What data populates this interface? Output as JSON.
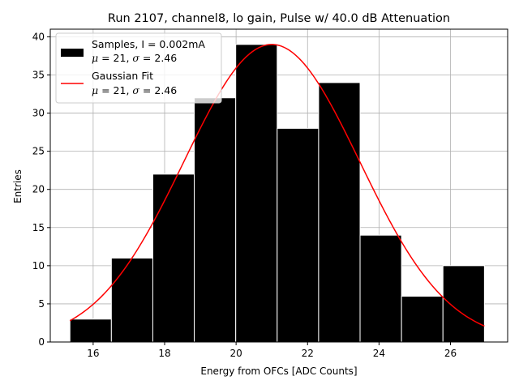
{
  "chart_data": {
    "type": "bar",
    "title": "Run 2107, channel8, lo gain, Pulse w/ 40.0 dB Attenuation",
    "xlabel": "Energy from OFCs [ADC Counts]",
    "ylabel": "Entries",
    "xlim": [
      14.8,
      27.6
    ],
    "ylim": [
      0,
      41
    ],
    "xticks": [
      "16",
      "18",
      "20",
      "22",
      "24",
      "26"
    ],
    "xtick_values": [
      16,
      18,
      20,
      22,
      24,
      26
    ],
    "yticks": [
      "0",
      "5",
      "10",
      "15",
      "20",
      "25",
      "30",
      "35",
      "40"
    ],
    "ytick_values": [
      0,
      5,
      10,
      15,
      20,
      25,
      30,
      35,
      40
    ],
    "grid": true,
    "bin_edges": [
      15.35,
      16.51,
      17.67,
      18.83,
      19.99,
      21.15,
      22.31,
      23.47,
      24.63,
      25.79,
      26.95
    ],
    "values": [
      3,
      11,
      22,
      32,
      39,
      28,
      34,
      14,
      6,
      10
    ],
    "bar_color": "#000000",
    "bar_edge_color": "#ffffff",
    "fit": {
      "name": "Gaussian Fit",
      "color": "#ff0000",
      "amplitude": 39,
      "mu": 21,
      "sigma": 2.46,
      "x_range": [
        15.35,
        26.95
      ]
    },
    "legend": {
      "position": "upper left",
      "entries": [
        {
          "name": "samples",
          "line1": "Samples, I = 0.002mA",
          "mu_label": "μ",
          "mu_text": " = 21, ",
          "sigma_label": "σ",
          "sigma_text": " = 2.46"
        },
        {
          "name": "gaussian-fit",
          "line1": "Gaussian Fit",
          "mu_label": "μ",
          "mu_text": " = 21, ",
          "sigma_label": "σ",
          "sigma_text": " = 2.46"
        }
      ]
    }
  }
}
